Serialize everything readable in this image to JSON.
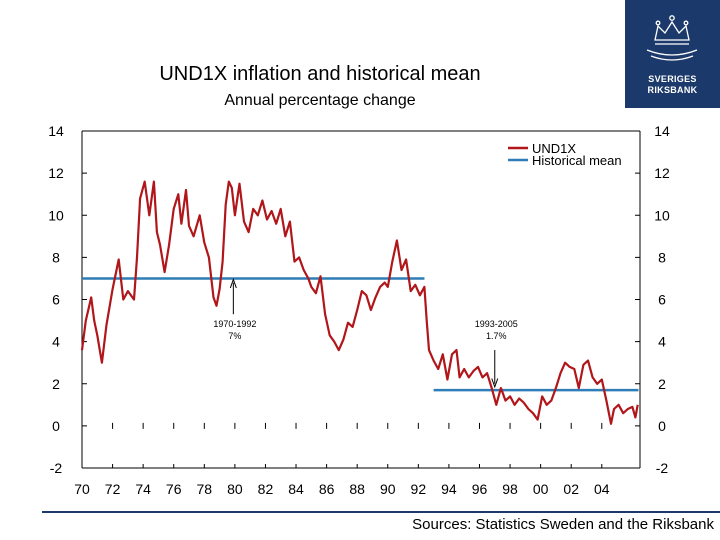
{
  "title": "UND1X inflation and historical mean",
  "subtitle": "Annual percentage change",
  "source": "Sources: Statistics Sweden and the Riksbank",
  "logo": {
    "line1": "SVERIGES",
    "line2": "RIKSBANK"
  },
  "colors": {
    "und1x": "#b0161a",
    "mean": "#2f7db6",
    "logo": "#1b3a6b"
  },
  "chart_data": {
    "type": "line",
    "title": "UND1X inflation and historical mean",
    "subtitle": "Annual percentage change",
    "xlabel": "",
    "ylabel": "",
    "xlim": [
      1970,
      2006.5
    ],
    "ylim": [
      -2,
      14
    ],
    "y_ticks": [
      14,
      12,
      10,
      8,
      6,
      4,
      2,
      0,
      -2
    ],
    "x_tick_labels": [
      "70",
      "72",
      "74",
      "76",
      "78",
      "80",
      "82",
      "84",
      "86",
      "88",
      "90",
      "92",
      "94",
      "96",
      "98",
      "00",
      "02",
      "04"
    ],
    "x_tick_years": [
      1970,
      1972,
      1974,
      1976,
      1978,
      1980,
      1982,
      1984,
      1986,
      1988,
      1990,
      1992,
      1994,
      1996,
      1998,
      2000,
      2002,
      2004
    ],
    "legend": {
      "position": "top-right",
      "entries": [
        "UND1X",
        "Historical mean"
      ]
    },
    "series": [
      {
        "name": "UND1X",
        "points": [
          [
            1970.0,
            3.6
          ],
          [
            1970.25,
            5.0
          ],
          [
            1970.6,
            6.1
          ],
          [
            1970.8,
            5.0
          ],
          [
            1971.0,
            4.3
          ],
          [
            1971.3,
            3.0
          ],
          [
            1971.6,
            4.8
          ],
          [
            1972.0,
            6.5
          ],
          [
            1972.4,
            7.9
          ],
          [
            1972.7,
            6.0
          ],
          [
            1973.0,
            6.4
          ],
          [
            1973.4,
            6.0
          ],
          [
            1973.6,
            8.0
          ],
          [
            1973.8,
            10.8
          ],
          [
            1974.1,
            11.6
          ],
          [
            1974.4,
            10.0
          ],
          [
            1974.7,
            11.6
          ],
          [
            1974.9,
            9.2
          ],
          [
            1975.1,
            8.6
          ],
          [
            1975.4,
            7.3
          ],
          [
            1975.7,
            8.6
          ],
          [
            1976.0,
            10.3
          ],
          [
            1976.3,
            11.0
          ],
          [
            1976.5,
            9.6
          ],
          [
            1976.8,
            11.2
          ],
          [
            1977.0,
            9.5
          ],
          [
            1977.3,
            9.0
          ],
          [
            1977.7,
            10.0
          ],
          [
            1978.0,
            8.7
          ],
          [
            1978.3,
            8.0
          ],
          [
            1978.6,
            6.1
          ],
          [
            1978.8,
            5.7
          ],
          [
            1979.0,
            6.5
          ],
          [
            1979.2,
            7.8
          ],
          [
            1979.4,
            10.5
          ],
          [
            1979.6,
            11.6
          ],
          [
            1979.8,
            11.3
          ],
          [
            1980.0,
            10.0
          ],
          [
            1980.3,
            11.5
          ],
          [
            1980.6,
            9.7
          ],
          [
            1980.9,
            9.2
          ],
          [
            1981.2,
            10.3
          ],
          [
            1981.5,
            10.0
          ],
          [
            1981.8,
            10.7
          ],
          [
            1982.1,
            9.8
          ],
          [
            1982.4,
            10.2
          ],
          [
            1982.7,
            9.6
          ],
          [
            1983.0,
            10.3
          ],
          [
            1983.3,
            9.0
          ],
          [
            1983.6,
            9.7
          ],
          [
            1983.9,
            7.8
          ],
          [
            1984.2,
            8.0
          ],
          [
            1984.5,
            7.4
          ],
          [
            1984.8,
            7.0
          ],
          [
            1985.0,
            6.6
          ],
          [
            1985.3,
            6.3
          ],
          [
            1985.6,
            7.1
          ],
          [
            1985.9,
            5.3
          ],
          [
            1986.2,
            4.3
          ],
          [
            1986.5,
            4.0
          ],
          [
            1986.8,
            3.6
          ],
          [
            1987.1,
            4.1
          ],
          [
            1987.4,
            4.9
          ],
          [
            1987.7,
            4.7
          ],
          [
            1988.0,
            5.5
          ],
          [
            1988.3,
            6.4
          ],
          [
            1988.6,
            6.2
          ],
          [
            1988.9,
            5.5
          ],
          [
            1989.2,
            6.1
          ],
          [
            1989.5,
            6.6
          ],
          [
            1989.8,
            6.8
          ],
          [
            1990.0,
            6.6
          ],
          [
            1990.3,
            7.8
          ],
          [
            1990.6,
            8.8
          ],
          [
            1990.9,
            7.4
          ],
          [
            1991.2,
            7.9
          ],
          [
            1991.5,
            6.4
          ],
          [
            1991.8,
            6.7
          ],
          [
            1992.1,
            6.2
          ],
          [
            1992.4,
            6.6
          ],
          [
            1992.55,
            5.0
          ],
          [
            1992.7,
            3.6
          ],
          [
            1993.0,
            3.1
          ],
          [
            1993.3,
            2.7
          ],
          [
            1993.6,
            3.4
          ],
          [
            1993.9,
            2.2
          ],
          [
            1994.2,
            3.4
          ],
          [
            1994.5,
            3.6
          ],
          [
            1994.7,
            2.3
          ],
          [
            1995.0,
            2.7
          ],
          [
            1995.3,
            2.3
          ],
          [
            1995.6,
            2.6
          ],
          [
            1995.9,
            2.8
          ],
          [
            1996.2,
            2.3
          ],
          [
            1996.5,
            2.5
          ],
          [
            1996.8,
            1.8
          ],
          [
            1997.1,
            1.0
          ],
          [
            1997.4,
            1.8
          ],
          [
            1997.7,
            1.2
          ],
          [
            1998.0,
            1.4
          ],
          [
            1998.3,
            1.0
          ],
          [
            1998.6,
            1.3
          ],
          [
            1998.9,
            1.1
          ],
          [
            1999.2,
            0.8
          ],
          [
            1999.5,
            0.6
          ],
          [
            1999.8,
            0.3
          ],
          [
            2000.1,
            1.4
          ],
          [
            2000.4,
            1.0
          ],
          [
            2000.7,
            1.2
          ],
          [
            2001.0,
            1.8
          ],
          [
            2001.3,
            2.5
          ],
          [
            2001.6,
            3.0
          ],
          [
            2001.9,
            2.8
          ],
          [
            2002.2,
            2.7
          ],
          [
            2002.5,
            1.8
          ],
          [
            2002.8,
            2.9
          ],
          [
            2003.1,
            3.1
          ],
          [
            2003.4,
            2.3
          ],
          [
            2003.7,
            2.0
          ],
          [
            2004.0,
            2.2
          ],
          [
            2004.3,
            1.2
          ],
          [
            2004.6,
            0.1
          ],
          [
            2004.8,
            0.8
          ],
          [
            2005.1,
            1.0
          ],
          [
            2005.4,
            0.6
          ],
          [
            2005.7,
            0.8
          ],
          [
            2006.0,
            0.9
          ],
          [
            2006.2,
            0.4
          ],
          [
            2006.35,
            1.0
          ]
        ]
      },
      {
        "name": "Historical mean",
        "segments": [
          {
            "x": [
              1970.0,
              1992.4
            ],
            "y": 7.0,
            "label_period": "1970-1992",
            "label_value": "7%"
          },
          {
            "x": [
              1993.0,
              2006.4
            ],
            "y": 1.7,
            "label_period": "1993-2005",
            "label_value": "1.7%"
          }
        ]
      }
    ],
    "annotations": [
      {
        "period": "1970-1992",
        "value": "7%",
        "x": 1980.0,
        "y": 4.4
      },
      {
        "period": "1993-2005",
        "value": "1.7%",
        "x": 1997.1,
        "y": 4.4
      }
    ]
  }
}
